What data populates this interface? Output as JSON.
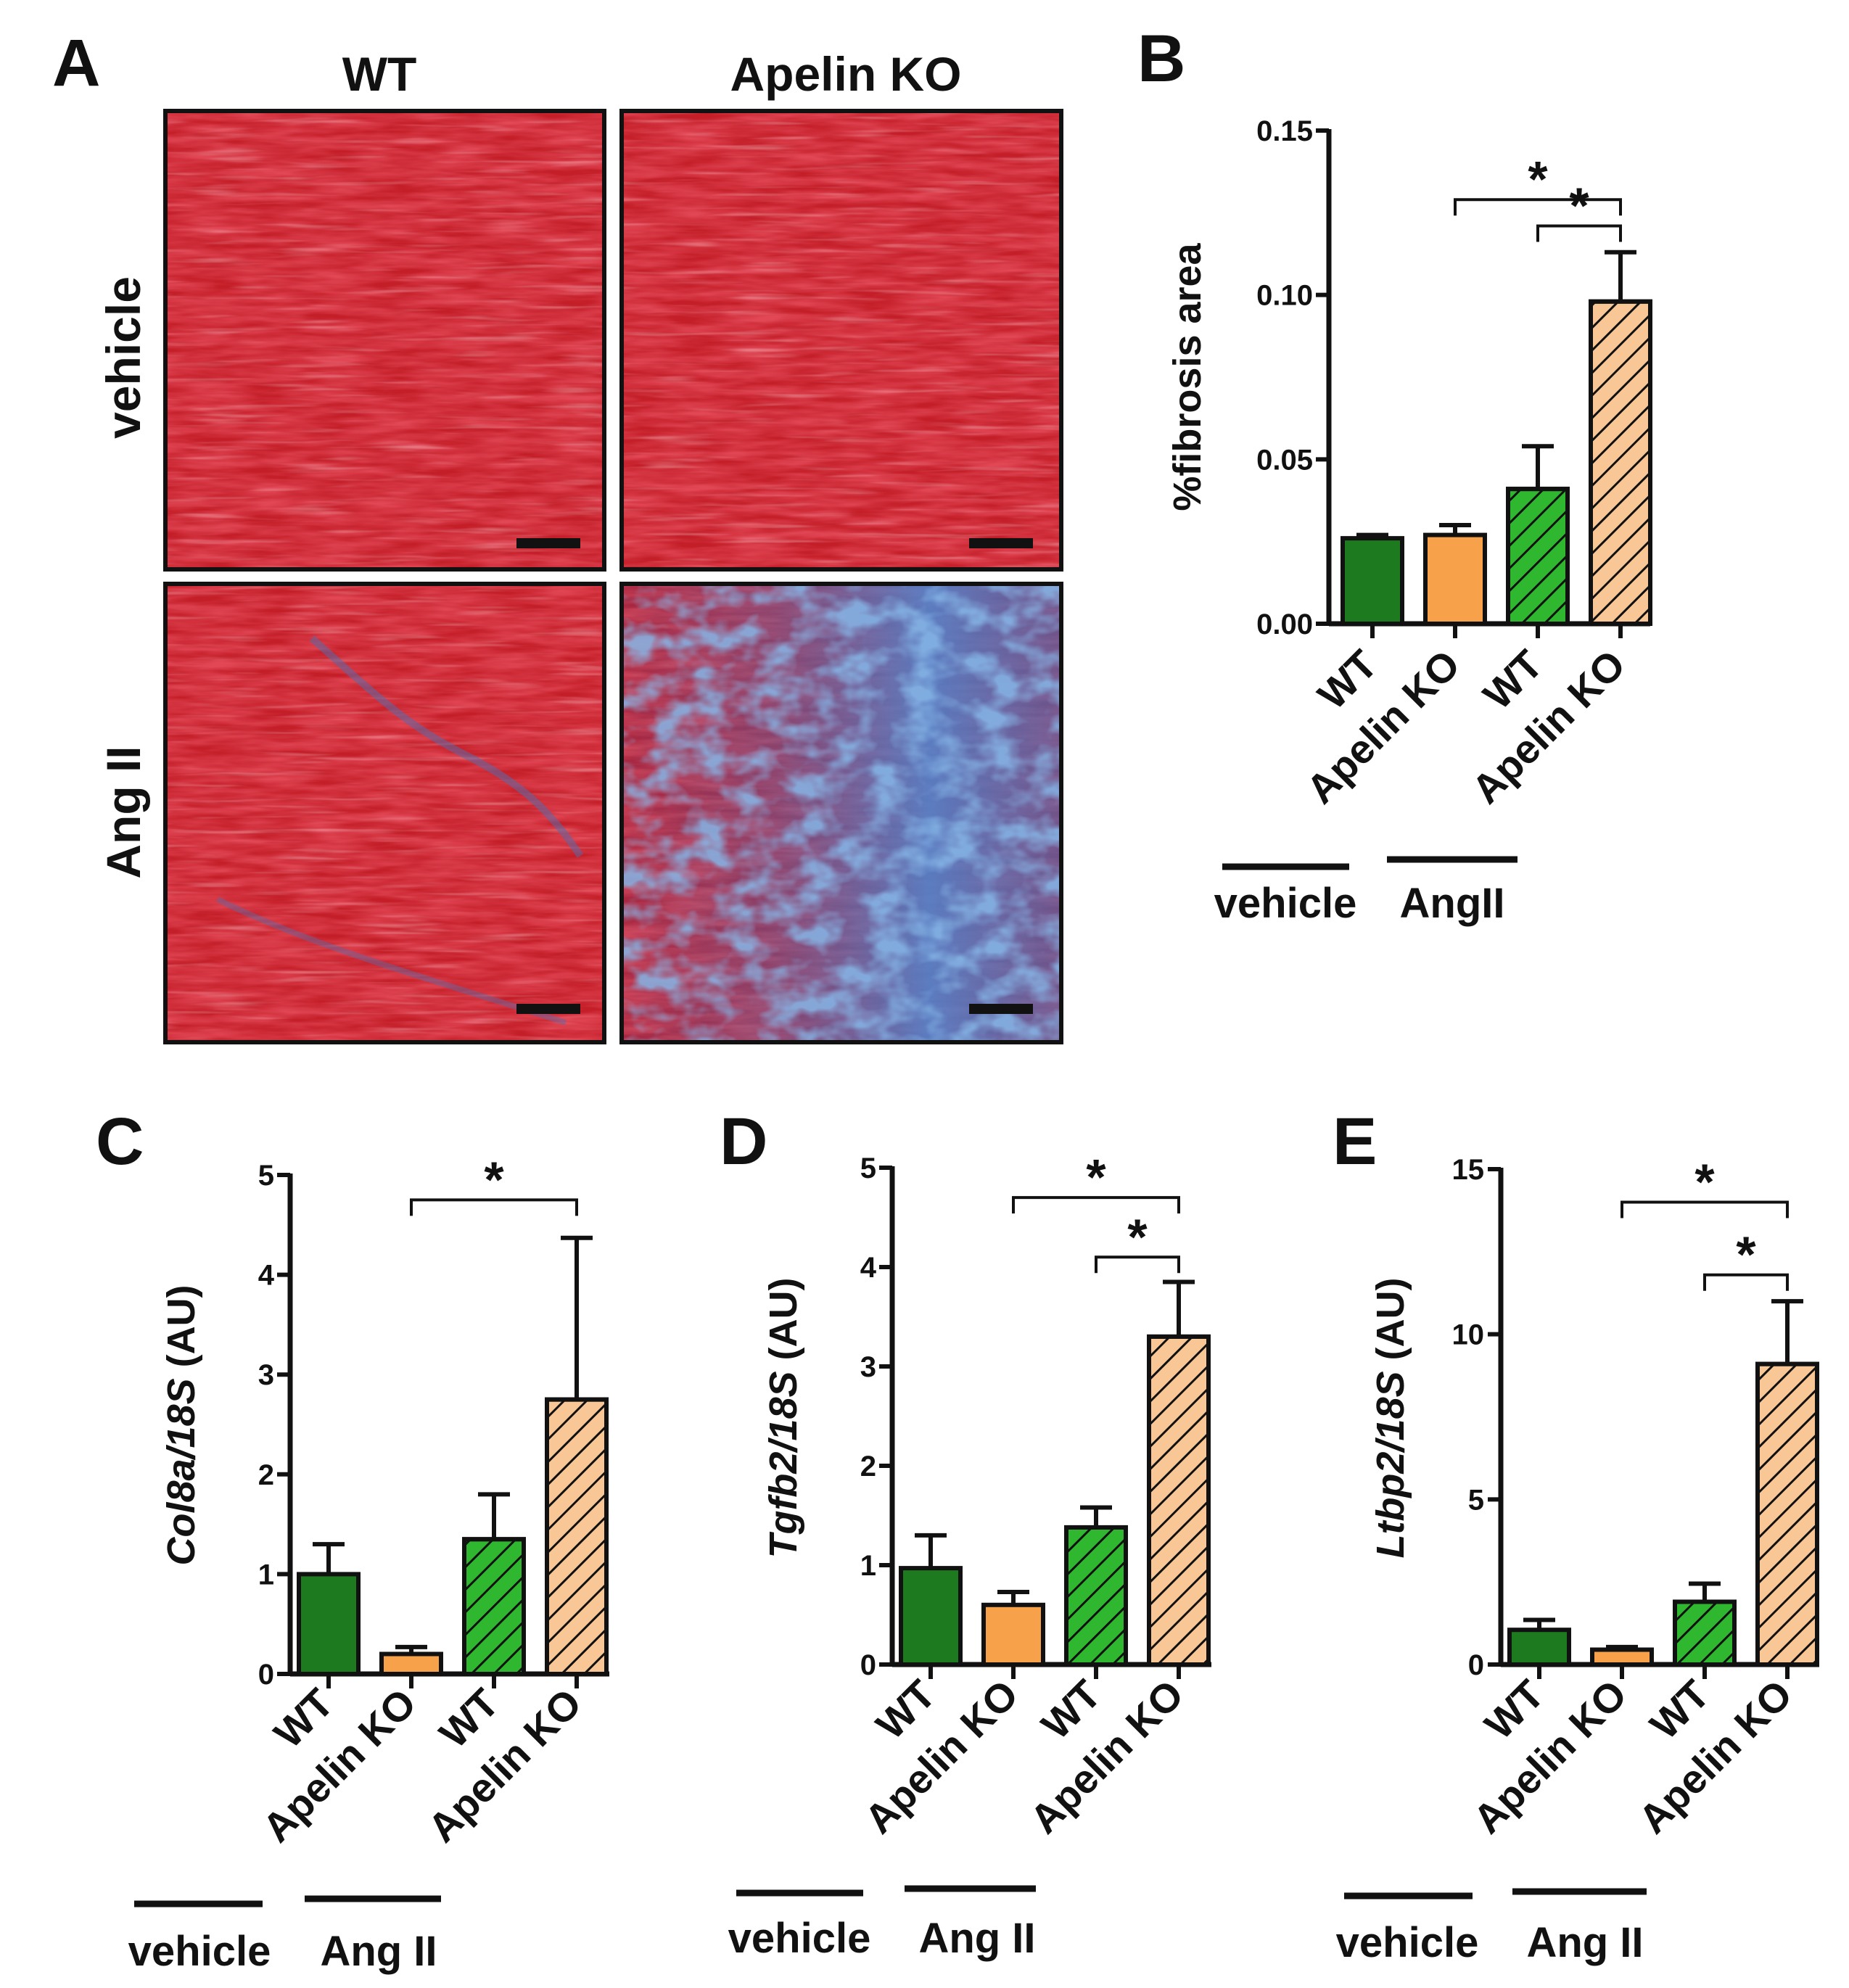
{
  "panels": {
    "A": {
      "letter": "A",
      "columns": [
        "WT",
        "Apelin KO"
      ],
      "rows": [
        "vehicle",
        "Ang II"
      ],
      "images": [
        {
          "name": "micrograph-wt-vehicle",
          "stain": "red",
          "fibrosis": "minimal"
        },
        {
          "name": "micrograph-ko-vehicle",
          "stain": "red",
          "fibrosis": "minimal"
        },
        {
          "name": "micrograph-wt-angii",
          "stain": "red",
          "fibrosis": "mild"
        },
        {
          "name": "micrograph-ko-angii",
          "stain": "red-blue",
          "fibrosis": "extensive"
        }
      ]
    }
  },
  "colors": {
    "wt": "#1e7a1e",
    "ko": "#f7a24a",
    "wt_angii": "#2fb82f",
    "ko_angii": "#f9c796",
    "axis": "#111111",
    "tissue_red": "#c8202a",
    "collagen_blue": "#3c78c8"
  },
  "chart_data": [
    {
      "panel": "B",
      "type": "bar",
      "ylabel": "%fibrosis area",
      "ylabel_italic_part": "",
      "ylabel_plain_part": "%fibrosis area",
      "ylim": [
        0,
        0.15
      ],
      "yticks": [
        "0.00",
        "0.05",
        "0.10",
        "0.15"
      ],
      "ytick_values": [
        0,
        0.05,
        0.1,
        0.15
      ],
      "categories": [
        "WT",
        "Apelin KO",
        "WT",
        "Apelin KO"
      ],
      "groups": [
        "vehicle",
        "AngII"
      ],
      "values": [
        0.026,
        0.027,
        0.041,
        0.098
      ],
      "errors": [
        0.001,
        0.003,
        0.013,
        0.015
      ],
      "patterns": [
        "solid",
        "solid",
        "hatched",
        "hatched"
      ],
      "fills": [
        "wt",
        "ko",
        "wt_angii",
        "ko_angii"
      ],
      "significance": [
        {
          "from": 1,
          "to": 3,
          "label": "*",
          "level": 0.129
        },
        {
          "from": 2,
          "to": 3,
          "label": "*",
          "level": 0.121
        }
      ]
    },
    {
      "panel": "C",
      "type": "bar",
      "ylabel_italic_part": "Col8a/18S",
      "ylabel_plain_part": " (AU)",
      "ylim": [
        0,
        5
      ],
      "yticks": [
        "0",
        "1",
        "2",
        "3",
        "4",
        "5"
      ],
      "ytick_values": [
        0,
        1,
        2,
        3,
        4,
        5
      ],
      "categories": [
        "WT",
        "Apelin KO",
        "WT",
        "Apelin KO"
      ],
      "groups": [
        "vehicle",
        "Ang II"
      ],
      "values": [
        1.0,
        0.2,
        1.35,
        2.75
      ],
      "errors": [
        0.3,
        0.07,
        0.45,
        1.62
      ],
      "patterns": [
        "solid",
        "solid",
        "hatched",
        "hatched"
      ],
      "fills": [
        "wt",
        "ko",
        "wt_angii",
        "ko_angii"
      ],
      "significance": [
        {
          "from": 1,
          "to": 3,
          "label": "*",
          "level": 4.75
        }
      ]
    },
    {
      "panel": "D",
      "type": "bar",
      "ylabel_italic_part": "Tgfb2/18S",
      "ylabel_plain_part": " (AU)",
      "ylim": [
        0,
        5
      ],
      "yticks": [
        "0",
        "1",
        "2",
        "3",
        "4",
        "5"
      ],
      "ytick_values": [
        0,
        1,
        2,
        3,
        4,
        5
      ],
      "categories": [
        "WT",
        "Apelin KO",
        "WT",
        "Apelin KO"
      ],
      "groups": [
        "vehicle",
        "Ang II"
      ],
      "values": [
        0.97,
        0.6,
        1.38,
        3.3
      ],
      "errors": [
        0.33,
        0.13,
        0.2,
        0.55
      ],
      "patterns": [
        "solid",
        "solid",
        "hatched",
        "hatched"
      ],
      "fills": [
        "wt",
        "ko",
        "wt_angii",
        "ko_angii"
      ],
      "significance": [
        {
          "from": 1,
          "to": 3,
          "label": "*",
          "level": 4.7
        },
        {
          "from": 2,
          "to": 3,
          "label": "*",
          "level": 4.1
        }
      ]
    },
    {
      "panel": "E",
      "type": "bar",
      "ylabel_italic_part": "Ltbp2/18S",
      "ylabel_plain_part": " (AU)",
      "ylim": [
        0,
        15
      ],
      "yticks": [
        "0",
        "5",
        "10",
        "15"
      ],
      "ytick_values": [
        0,
        5,
        10,
        15
      ],
      "categories": [
        "WT",
        "Apelin KO",
        "WT",
        "Apelin KO"
      ],
      "groups": [
        "vehicle",
        "Ang II"
      ],
      "values": [
        1.05,
        0.45,
        1.9,
        9.1
      ],
      "errors": [
        0.3,
        0.08,
        0.55,
        1.9
      ],
      "patterns": [
        "solid",
        "solid",
        "hatched",
        "hatched"
      ],
      "fills": [
        "wt",
        "ko",
        "wt_angii",
        "ko_angii"
      ],
      "significance": [
        {
          "from": 1,
          "to": 3,
          "label": "*",
          "level": 14.0
        },
        {
          "from": 2,
          "to": 3,
          "label": "*",
          "level": 11.8
        }
      ]
    }
  ]
}
